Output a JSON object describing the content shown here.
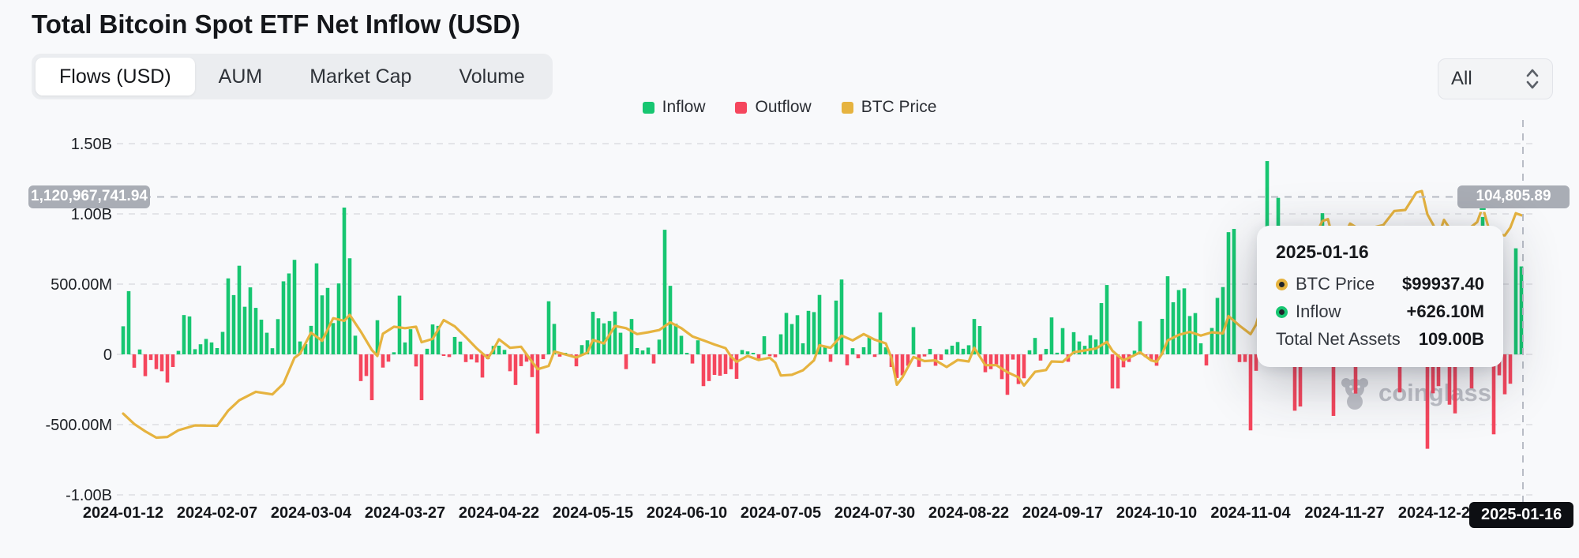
{
  "header": {
    "title": "Total Bitcoin Spot ETF Net Inflow (USD)",
    "tabs": [
      "Flows (USD)",
      "AUM",
      "Market Cap",
      "Volume"
    ],
    "active_tab": "Flows (USD)",
    "range_select": {
      "value": "All"
    }
  },
  "legend": [
    {
      "label": "Inflow",
      "color": "#17c671"
    },
    {
      "label": "Outflow",
      "color": "#f5465d"
    },
    {
      "label": "BTC Price",
      "color": "#e6b33f"
    }
  ],
  "crosshair": {
    "date_label": "2025-01-16",
    "left_axis_badge": "1,120,967,741.94",
    "right_axis_badge": "104,805.89",
    "flow_value_musd": 1120.96774194,
    "bar_index": 253
  },
  "tooltip": {
    "date": "2025-01-16",
    "rows": [
      {
        "label": "BTC Price",
        "value": "$99937.40",
        "dot_color": "#e6b33f"
      },
      {
        "label": "Inflow",
        "value": "+626.10M",
        "dot_color": "#17c671"
      },
      {
        "label": "Total Net Assets",
        "value": "109.00B",
        "dot_color": null
      }
    ]
  },
  "watermark": {
    "text": "coinglass"
  },
  "chart_data": {
    "type": "combo_bar_line",
    "title": "Total Bitcoin Spot ETF Net Inflow (USD)",
    "bar_series_names": [
      "Inflow",
      "Outflow"
    ],
    "line_series_name": "BTC Price",
    "y_axis_tick_labels": [
      "1.50B",
      "1.00B",
      "500.00M",
      "0",
      "-500.00M",
      "-1.00B"
    ],
    "y_axis_tick_values_musd": [
      1500,
      1000,
      500,
      0,
      -500,
      -1000
    ],
    "ylim_musd": [
      -1000,
      1500
    ],
    "grid": "dashed-horizontal",
    "legend_position": "top-center",
    "x_tick_indices": [
      0,
      17,
      34,
      51,
      68,
      85,
      102,
      119,
      136,
      153,
      170,
      187,
      204,
      221,
      238
    ],
    "x_tick_labels": [
      "2024-01-12",
      "2024-02-07",
      "2024-03-04",
      "2024-03-27",
      "2024-04-22",
      "2024-05-15",
      "2024-06-10",
      "2024-07-05",
      "2024-07-30",
      "2024-08-22",
      "2024-09-17",
      "2024-10-10",
      "2024-11-04",
      "2024-11-27",
      "2024-12-23"
    ],
    "hover_x_label": "2025-01-16",
    "flows_musd": [
      200,
      450,
      -95,
      35,
      -155,
      -40,
      -105,
      -120,
      -200,
      -90,
      25,
      280,
      270,
      37,
      72,
      110,
      85,
      45,
      160,
      541,
      422,
      631,
      339,
      477,
      331,
      247,
      154,
      44,
      251,
      520,
      576,
      673,
      92,
      73,
      203,
      648,
      420,
      473,
      223,
      505,
      1045,
      684,
      133,
      -190,
      -154,
      -326,
      243,
      -94,
      -52,
      15,
      418,
      85,
      179,
      -86,
      -326,
      40,
      213,
      203,
      -3,
      -19,
      124,
      91,
      -55,
      -36,
      -58,
      -165,
      -34,
      60,
      62,
      32,
      -120,
      -218,
      -84,
      -52,
      -162,
      -564,
      -34,
      378,
      217,
      -16,
      11,
      -11,
      -85,
      66,
      100,
      303,
      257,
      221,
      237,
      305,
      154,
      -105,
      252,
      45,
      28,
      48,
      -65,
      105,
      887,
      488,
      218,
      132,
      6,
      -65,
      100,
      -226,
      -190,
      -146,
      -152,
      -140,
      -106,
      -174,
      31,
      21,
      11,
      -30,
      129,
      -13,
      -20,
      143,
      295,
      216,
      279,
      79,
      310,
      301,
      423,
      53,
      -53,
      383,
      533,
      -78,
      44,
      -28,
      51,
      124,
      -18,
      299,
      50,
      -90,
      -168,
      -149,
      -81,
      194,
      -89,
      -15,
      39,
      -81,
      -39,
      36,
      62,
      88,
      40,
      65,
      252,
      202,
      -127,
      -105,
      -71,
      -176,
      -288,
      -37,
      -211,
      -170,
      29,
      117,
      -44,
      39,
      263,
      12,
      187,
      -53,
      158,
      92,
      61,
      136,
      106,
      365,
      494,
      -243,
      -243,
      -92,
      -54,
      26,
      235,
      -19,
      -41,
      -81,
      253,
      556,
      371,
      458,
      470,
      273,
      294,
      79,
      -79,
      188,
      402,
      479,
      870,
      893,
      -55,
      -54,
      -541,
      -117,
      622,
      1376,
      293,
      1114,
      818,
      511,
      -401,
      -371,
      11,
      817,
      773,
      1005,
      490,
      -438,
      103,
      103,
      320,
      -279,
      676,
      557,
      766,
      377,
      -64,
      443,
      598,
      -271,
      429,
      636,
      522,
      -68,
      -672,
      -277,
      -226,
      31,
      -358,
      -420,
      -17,
      -5,
      -242,
      908,
      978,
      53,
      -569,
      -149,
      -284,
      -209,
      755,
      626.1
    ],
    "btc_price_anchors": [
      [
        0,
        46300
      ],
      [
        2,
        43500
      ],
      [
        4,
        41500
      ],
      [
        6,
        39800
      ],
      [
        8,
        40000
      ],
      [
        10,
        41800
      ],
      [
        13,
        43100
      ],
      [
        17,
        43000
      ],
      [
        19,
        47100
      ],
      [
        21,
        49900
      ],
      [
        24,
        52200
      ],
      [
        27,
        51500
      ],
      [
        29,
        54400
      ],
      [
        31,
        61400
      ],
      [
        32,
        62500
      ],
      [
        34,
        68200
      ],
      [
        36,
        66000
      ],
      [
        38,
        72100
      ],
      [
        40,
        71400
      ],
      [
        41,
        73000
      ],
      [
        43,
        68500
      ],
      [
        45,
        63500
      ],
      [
        46,
        61900
      ],
      [
        47,
        67900
      ],
      [
        49,
        69800
      ],
      [
        51,
        69400
      ],
      [
        53,
        69800
      ],
      [
        54,
        65600
      ],
      [
        56,
        66500
      ],
      [
        58,
        71600
      ],
      [
        60,
        69900
      ],
      [
        62,
        67000
      ],
      [
        64,
        63900
      ],
      [
        66,
        61300
      ],
      [
        67,
        63600
      ],
      [
        68,
        66400
      ],
      [
        70,
        64100
      ],
      [
        72,
        64400
      ],
      [
        74,
        60300
      ],
      [
        75,
        58300
      ],
      [
        77,
        59200
      ],
      [
        78,
        63100
      ],
      [
        80,
        62300
      ],
      [
        82,
        61500
      ],
      [
        84,
        62800
      ],
      [
        85,
        66200
      ],
      [
        87,
        65300
      ],
      [
        89,
        70000
      ],
      [
        91,
        69400
      ],
      [
        93,
        67800
      ],
      [
        95,
        68300
      ],
      [
        97,
        68900
      ],
      [
        99,
        71000
      ],
      [
        101,
        69400
      ],
      [
        103,
        67200
      ],
      [
        105,
        66100
      ],
      [
        107,
        65000
      ],
      [
        109,
        64000
      ],
      [
        110,
        61700
      ],
      [
        111,
        60300
      ],
      [
        113,
        61900
      ],
      [
        115,
        60800
      ],
      [
        117,
        61400
      ],
      [
        118,
        60100
      ],
      [
        119,
        56600
      ],
      [
        121,
        56800
      ],
      [
        123,
        58000
      ],
      [
        125,
        60700
      ],
      [
        126,
        64800
      ],
      [
        128,
        64100
      ],
      [
        130,
        67400
      ],
      [
        132,
        66100
      ],
      [
        134,
        67800
      ],
      [
        136,
        66300
      ],
      [
        138,
        65300
      ],
      [
        139,
        61400
      ],
      [
        140,
        54100
      ],
      [
        141,
        56100
      ],
      [
        143,
        61600
      ],
      [
        145,
        60500
      ],
      [
        147,
        60700
      ],
      [
        149,
        58900
      ],
      [
        151,
        60800
      ],
      [
        153,
        60400
      ],
      [
        154,
        64100
      ],
      [
        156,
        59400
      ],
      [
        158,
        59400
      ],
      [
        160,
        57500
      ],
      [
        162,
        56100
      ],
      [
        163,
        53900
      ],
      [
        165,
        57600
      ],
      [
        167,
        58100
      ],
      [
        168,
        60400
      ],
      [
        170,
        60300
      ],
      [
        172,
        62900
      ],
      [
        174,
        63400
      ],
      [
        176,
        63900
      ],
      [
        178,
        65700
      ],
      [
        179,
        63300
      ],
      [
        181,
        60700
      ],
      [
        183,
        62100
      ],
      [
        184,
        62900
      ],
      [
        186,
        60700
      ],
      [
        187,
        60300
      ],
      [
        188,
        62500
      ],
      [
        189,
        66100
      ],
      [
        191,
        67600
      ],
      [
        193,
        68400
      ],
      [
        195,
        67400
      ],
      [
        197,
        68300
      ],
      [
        199,
        68000
      ],
      [
        200,
        72700
      ],
      [
        202,
        70100
      ],
      [
        204,
        67800
      ],
      [
        205,
        70400
      ],
      [
        206,
        75600
      ],
      [
        208,
        76600
      ],
      [
        209,
        88700
      ],
      [
        211,
        90400
      ],
      [
        213,
        91000
      ],
      [
        215,
        92300
      ],
      [
        217,
        98400
      ],
      [
        218,
        98900
      ],
      [
        219,
        93100
      ],
      [
        220,
        91900
      ],
      [
        222,
        97700
      ],
      [
        224,
        95900
      ],
      [
        226,
        96600
      ],
      [
        228,
        97300
      ],
      [
        230,
        101100
      ],
      [
        232,
        101400
      ],
      [
        234,
        106100
      ],
      [
        235,
        106500
      ],
      [
        236,
        100200
      ],
      [
        237,
        97500
      ],
      [
        238,
        94300
      ],
      [
        239,
        98700
      ],
      [
        241,
        94200
      ],
      [
        242,
        92600
      ],
      [
        244,
        96900
      ],
      [
        245,
        98100
      ],
      [
        246,
        102200
      ],
      [
        247,
        96900
      ],
      [
        249,
        94700
      ],
      [
        250,
        94500
      ],
      [
        251,
        96600
      ],
      [
        252,
        100500
      ],
      [
        253,
        99937.4
      ]
    ],
    "price_marker_bar_index": 246,
    "colors": {
      "inflow": "#17c671",
      "outflow": "#f5465d",
      "price": "#e6b33f",
      "grid": "#e3e4e8",
      "crosshair": "#b9bdc6",
      "axis_text": "#1d2025",
      "x_text": "#14161a"
    }
  }
}
